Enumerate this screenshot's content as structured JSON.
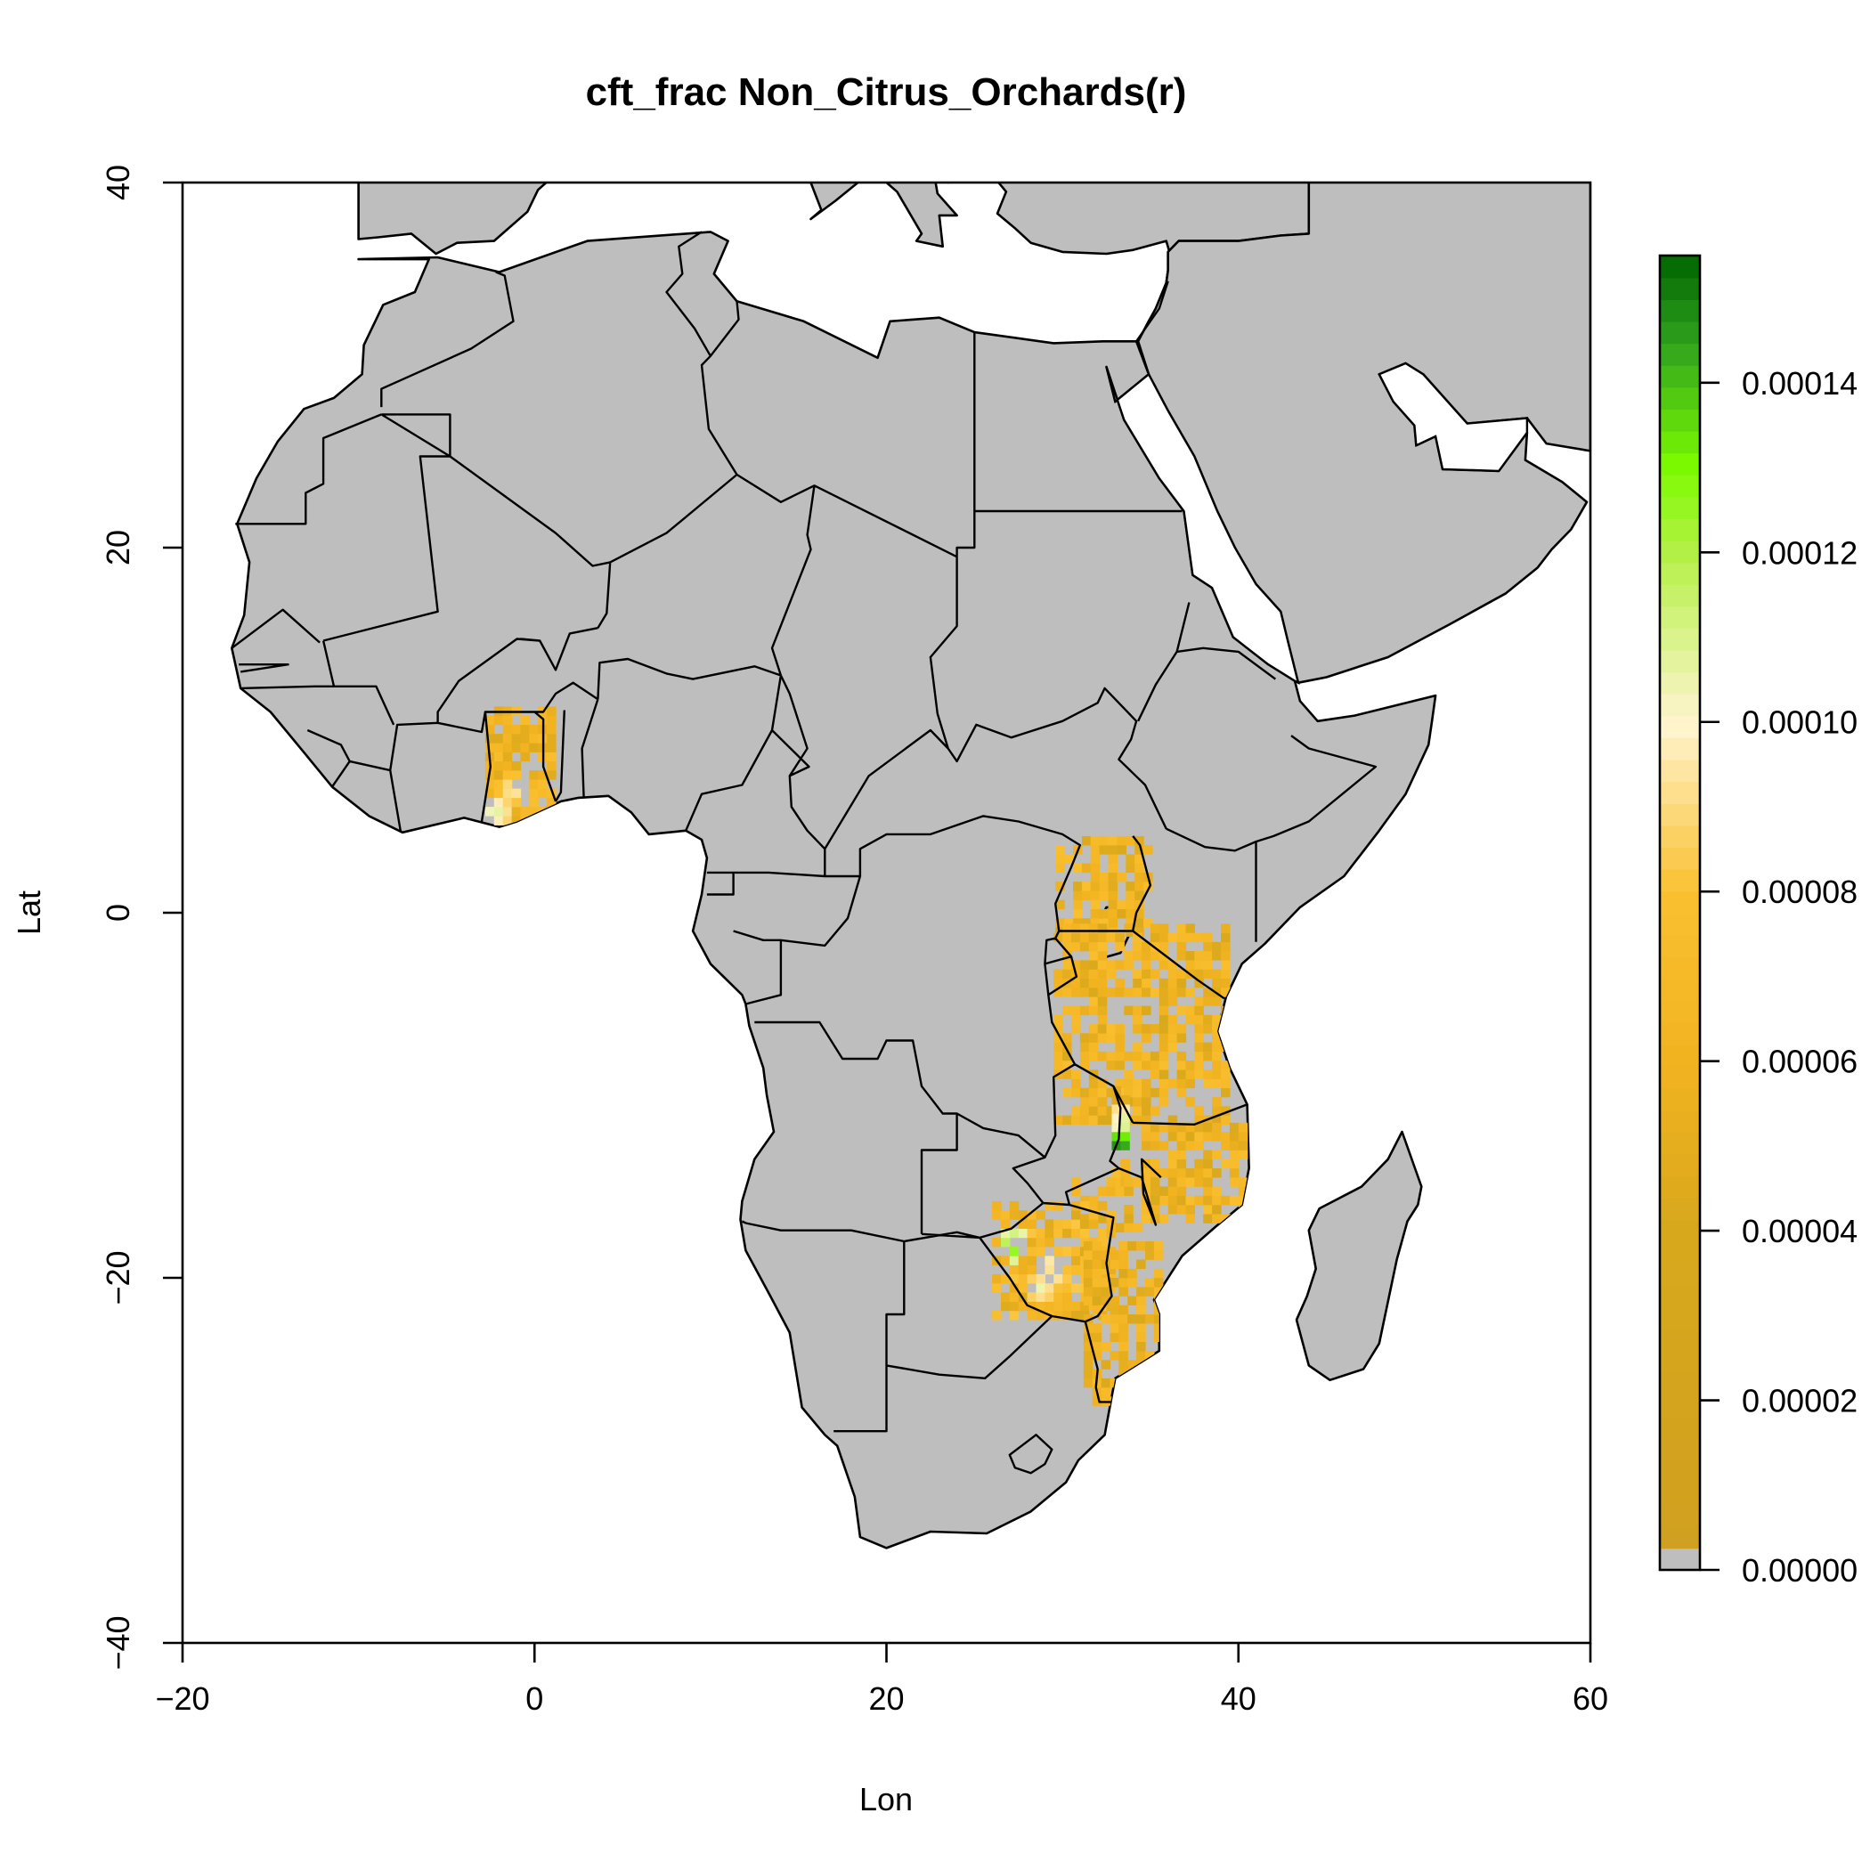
{
  "map": {
    "title": "cft_frac Non_Citrus_Orchards(r)",
    "xlabel": "Lon",
    "ylabel": "Lat",
    "xlim": [
      -20,
      60
    ],
    "ylim": [
      -40,
      40
    ],
    "x_ticks": [
      {
        "value": -20,
        "label": "−20"
      },
      {
        "value": 0,
        "label": "0"
      },
      {
        "value": 20,
        "label": "20"
      },
      {
        "value": 40,
        "label": "40"
      },
      {
        "value": 60,
        "label": "60"
      }
    ],
    "y_ticks": [
      {
        "value": -40,
        "label": "−40"
      },
      {
        "value": -20,
        "label": "−20"
      },
      {
        "value": 0,
        "label": "0"
      },
      {
        "value": 20,
        "label": "20"
      },
      {
        "value": 40,
        "label": "40"
      }
    ],
    "colors": {
      "land": "#bebebe",
      "ocean": "#ffffff",
      "border": "#000000"
    },
    "legend": {
      "position": "right",
      "min": 0,
      "max": 0.000155,
      "ticks": [
        {
          "value": 0.0,
          "label": "0.00000"
        },
        {
          "value": 2e-05,
          "label": "0.00002"
        },
        {
          "value": 4e-05,
          "label": "0.00004"
        },
        {
          "value": 6e-05,
          "label": "0.00006"
        },
        {
          "value": 8e-05,
          "label": "0.00008"
        },
        {
          "value": 0.0001,
          "label": "0.00010"
        },
        {
          "value": 0.00012,
          "label": "0.00012"
        },
        {
          "value": 0.00014,
          "label": "0.00014"
        }
      ],
      "color_stops": [
        {
          "value": 0.0,
          "color": "#bebebe"
        },
        {
          "value": 1.5e-06,
          "color": "#d0a020"
        },
        {
          "value": 4e-05,
          "color": "#d8a81c"
        },
        {
          "value": 6e-05,
          "color": "#f2b320"
        },
        {
          "value": 8e-05,
          "color": "#fac030"
        },
        {
          "value": 0.0001,
          "color": "#fff5d0"
        },
        {
          "value": 0.00012,
          "color": "#b4f046"
        },
        {
          "value": 0.00013,
          "color": "#7cfc00"
        },
        {
          "value": 0.000145,
          "color": "#2ea01e"
        },
        {
          "value": 0.000155,
          "color": "#006400"
        }
      ]
    },
    "data_regions": [
      {
        "name": "Ghana",
        "lon": [
          -2.8,
          1.0
        ],
        "lat": [
          4.8,
          11.0
        ],
        "base": 6.8e-05,
        "hot": [
          [
            -1.5,
            6.5,
            0.0001
          ],
          [
            -2.5,
            5.3,
            0.000112
          ],
          [
            -0.5,
            6.0,
            8.5e-05
          ]
        ]
      },
      {
        "name": "Uganda",
        "lon": [
          29.6,
          34.8
        ],
        "lat": [
          -1.3,
          4.0
        ],
        "base": 6.8e-05,
        "hot": []
      },
      {
        "name": "Tanzania",
        "lon": [
          29.5,
          39.5
        ],
        "lat": [
          -11.6,
          -1.0
        ],
        "base": 6.8e-05,
        "hot": []
      },
      {
        "name": "Malawi",
        "lon": [
          32.8,
          33.6
        ],
        "lat": [
          -15.0,
          -9.5
        ],
        "base": 7e-05,
        "hot": [
          [
            33.2,
            -11.5,
            0.00011
          ],
          [
            33.3,
            -12.5,
            0.000125
          ],
          [
            33.0,
            -13.0,
            0.000155
          ]
        ]
      },
      {
        "name": "Mozambique north",
        "lon": [
          34.5,
          40.5
        ],
        "lat": [
          -17.0,
          -11.5
        ],
        "base": 6.8e-05,
        "hot": []
      },
      {
        "name": "Zambia-Mozambique",
        "lon": [
          30.5,
          35.5
        ],
        "lat": [
          -17.5,
          -14.5
        ],
        "base": 6.8e-05,
        "hot": []
      },
      {
        "name": "Zimbabwe",
        "lon": [
          26.0,
          32.8
        ],
        "lat": [
          -22.3,
          -15.8
        ],
        "base": 7.2e-05,
        "hot": [
          [
            29.0,
            -19.5,
            0.0001
          ],
          [
            29.5,
            -20.2,
            9.5e-05
          ],
          [
            30.5,
            -20.5,
            9e-05
          ],
          [
            27.0,
            -18.5,
            0.000135
          ],
          [
            28.5,
            -20.8,
            0.000105
          ]
        ]
      },
      {
        "name": "Mozambique south",
        "lon": [
          31.2,
          35.5
        ],
        "lat": [
          -27.0,
          -18.0
        ],
        "base": 6.6e-05,
        "hot": []
      }
    ]
  }
}
